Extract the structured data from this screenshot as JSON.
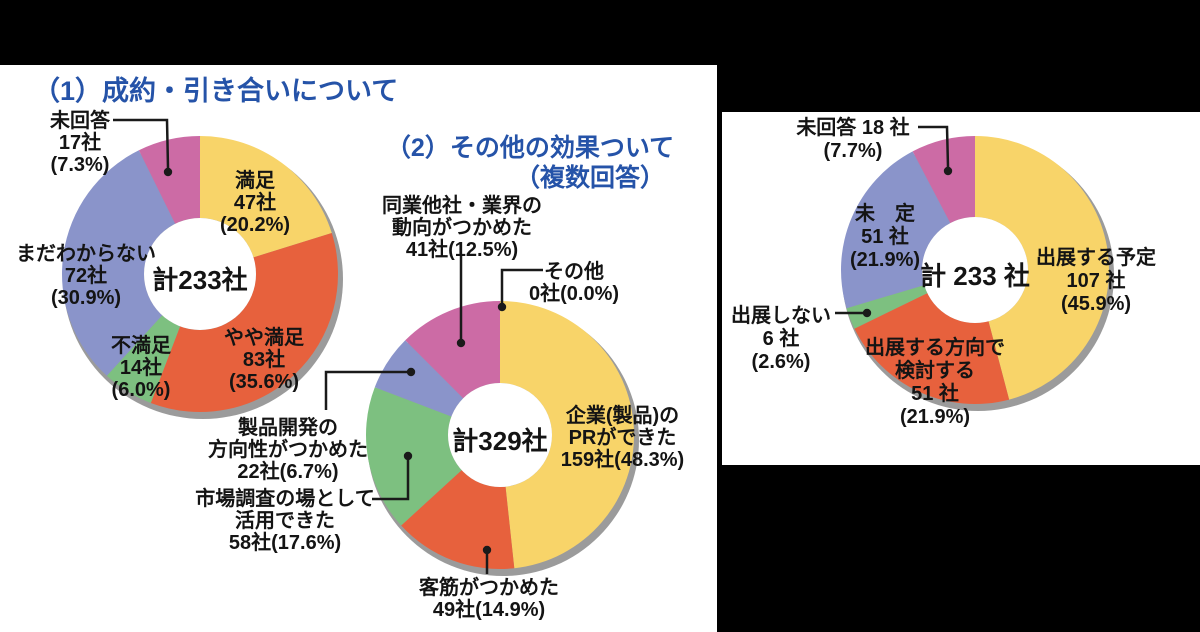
{
  "colors": {
    "yellow": "#F8D469",
    "orange": "#E7613D",
    "green": "#7DC080",
    "blue": "#8A94CA",
    "magenta": "#CC6BA5",
    "shadow": "#9B9B9B",
    "title_blue": "#2553A8",
    "text": "#141414",
    "panel_bg": "#FFFFFF",
    "page_bg": "#000000"
  },
  "charts": [
    {
      "title": "（1）成約・引き合いについて",
      "center_label": "計233社",
      "segments": [
        {
          "name": "満足",
          "value": 20.2,
          "color": "yellow",
          "lines": [
            "満足",
            "47社",
            "(20.2%)"
          ]
        },
        {
          "name": "やや満足",
          "value": 35.6,
          "color": "orange",
          "lines": [
            "やや満足",
            "83社",
            "(35.6%)"
          ]
        },
        {
          "name": "不満足",
          "value": 6.0,
          "color": "green",
          "lines": [
            "不満足",
            "14社",
            "(6.0%)"
          ]
        },
        {
          "name": "まだわからない",
          "value": 30.9,
          "color": "blue",
          "lines": [
            "まだわからない",
            "72社",
            "(30.9%)"
          ]
        },
        {
          "name": "未回答",
          "value": 7.3,
          "color": "magenta",
          "lines": [
            "未回答",
            "17社",
            "(7.3%)"
          ]
        }
      ]
    },
    {
      "title_line1": "（2）その他の効果ついて",
      "title_line2": "（複数回答）",
      "center_label": "計329社",
      "segments": [
        {
          "name": "企業(製品)のPRができた",
          "value": 48.3,
          "color": "yellow",
          "lines": [
            "企業(製品)の",
            "PRができた",
            "159社(48.3%)"
          ]
        },
        {
          "name": "客筋がつかめた",
          "value": 14.9,
          "color": "orange",
          "lines": [
            "客筋がつかめた",
            "49社(14.9%)"
          ]
        },
        {
          "name": "市場調査の場として活用できた",
          "value": 17.6,
          "color": "green",
          "lines": [
            "市場調査の場として",
            "活用できた",
            "58社(17.6%)"
          ]
        },
        {
          "name": "製品開発の方向性がつかめた",
          "value": 6.7,
          "color": "blue",
          "lines": [
            "製品開発の",
            "方向性がつかめた",
            "22社(6.7%)"
          ]
        },
        {
          "name": "同業他社・業界の動向がつかめた",
          "value": 12.5,
          "color": "magenta",
          "lines": [
            "同業他社・業界の",
            "動向がつかめた",
            "41社(12.5%)"
          ]
        },
        {
          "name": "その他",
          "value": 0.0,
          "color": "none",
          "lines": [
            "その他",
            "0社(0.0%)"
          ]
        }
      ]
    },
    {
      "center_label": "計 233 社",
      "segments": [
        {
          "name": "出展する予定",
          "value": 45.9,
          "color": "yellow",
          "lines": [
            "出展する予定",
            "107 社",
            "(45.9%)"
          ]
        },
        {
          "name": "出展する方向で検討する",
          "value": 21.9,
          "color": "orange",
          "lines": [
            "出展する方向で",
            "検討する",
            "51 社",
            "(21.9%)"
          ]
        },
        {
          "name": "出展しない",
          "value": 2.6,
          "color": "green",
          "lines": [
            "出展しない",
            "6 社",
            "(2.6%)"
          ]
        },
        {
          "name": "未定",
          "value": 21.9,
          "color": "blue",
          "lines": [
            "未　定",
            "51 社",
            "(21.9%)"
          ]
        },
        {
          "name": "未回答",
          "value": 7.7,
          "color": "magenta",
          "lines": [
            "未回答 18 社",
            "(7.7%)"
          ]
        }
      ]
    }
  ],
  "chart_data": [
    {
      "type": "pie",
      "subtype": "donut",
      "title": "（1）成約・引き合いについて",
      "center_total": "計233社",
      "total_companies": 233,
      "labels": [
        "満足",
        "やや満足",
        "不満足",
        "まだわからない",
        "未回答"
      ],
      "counts": [
        47,
        83,
        14,
        72,
        17
      ],
      "percents": [
        20.2,
        35.6,
        6.0,
        30.9,
        7.3
      ],
      "colors": [
        "#F8D469",
        "#E7613D",
        "#7DC080",
        "#8A94CA",
        "#CC6BA5"
      ],
      "start_angle": "12 o'clock, clockwise"
    },
    {
      "type": "pie",
      "subtype": "donut",
      "title": "（2）その他の効果ついて（複数回答）",
      "center_total": "計329社",
      "total_companies": 329,
      "labels": [
        "企業(製品)のPRができた",
        "客筋がつかめた",
        "市場調査の場として活用できた",
        "製品開発の方向性がつかめた",
        "同業他社・業界の動向がつかめた",
        "その他"
      ],
      "counts": [
        159,
        49,
        58,
        22,
        41,
        0
      ],
      "percents": [
        48.3,
        14.9,
        17.6,
        6.7,
        12.5,
        0.0
      ],
      "colors": [
        "#F8D469",
        "#E7613D",
        "#7DC080",
        "#8A94CA",
        "#CC6BA5",
        null
      ],
      "start_angle": "12 o'clock, clockwise"
    },
    {
      "type": "pie",
      "subtype": "donut",
      "title": "",
      "center_total": "計 233 社",
      "total_companies": 233,
      "labels": [
        "出展する予定",
        "出展する方向で検討する",
        "出展しない",
        "未定",
        "未回答"
      ],
      "counts": [
        107,
        51,
        6,
        51,
        18
      ],
      "percents": [
        45.9,
        21.9,
        2.6,
        21.9,
        7.7
      ],
      "colors": [
        "#F8D469",
        "#E7613D",
        "#7DC080",
        "#8A94CA",
        "#CC6BA5"
      ],
      "start_angle": "12 o'clock, clockwise"
    }
  ]
}
